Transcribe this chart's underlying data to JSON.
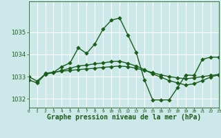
{
  "title": "Graphe pression niveau de la mer (hPa)",
  "bg_color": "#cce8e8",
  "grid_color": "#ffffff",
  "line_color": "#1a5c1a",
  "xlim": [
    0,
    23
  ],
  "ylim": [
    1031.6,
    1036.4
  ],
  "yticks": [
    1032,
    1033,
    1034,
    1035
  ],
  "xticks": [
    0,
    1,
    2,
    3,
    4,
    5,
    6,
    7,
    8,
    9,
    10,
    11,
    12,
    13,
    14,
    15,
    16,
    17,
    18,
    19,
    20,
    21,
    22,
    23
  ],
  "series1_x": [
    0,
    1,
    2,
    3,
    4,
    5,
    6,
    7,
    8,
    9,
    10,
    11,
    12,
    13,
    14,
    15,
    16,
    17,
    18,
    19,
    20,
    21,
    22,
    23
  ],
  "series1_y": [
    1032.85,
    1032.72,
    1033.1,
    1033.2,
    1033.45,
    1033.62,
    1034.3,
    1034.05,
    1034.48,
    1035.15,
    1035.55,
    1035.65,
    1034.88,
    1034.1,
    1032.85,
    1031.95,
    1031.95,
    1031.95,
    1032.5,
    1033.08,
    1033.05,
    1033.78,
    1033.88,
    1033.88
  ],
  "series2_x": [
    2,
    3,
    4,
    5,
    6,
    7,
    8,
    9,
    10,
    11,
    12,
    13,
    14,
    15,
    16,
    17,
    18,
    19,
    20,
    21,
    22,
    23
  ],
  "series2_y": [
    1033.15,
    1033.2,
    1033.25,
    1033.28,
    1033.32,
    1033.35,
    1033.38,
    1033.42,
    1033.45,
    1033.48,
    1033.45,
    1033.38,
    1033.28,
    1033.18,
    1033.08,
    1033.0,
    1032.95,
    1032.9,
    1032.95,
    1033.0,
    1033.05,
    1033.1
  ],
  "series3_x": [
    0,
    1,
    2,
    3,
    4,
    5,
    6,
    7,
    8,
    9,
    10,
    11,
    12,
    13,
    14,
    15,
    16,
    17,
    18,
    19,
    20,
    21,
    22,
    23
  ],
  "series3_y": [
    1033.0,
    1032.8,
    1033.12,
    1033.18,
    1033.28,
    1033.38,
    1033.48,
    1033.52,
    1033.58,
    1033.62,
    1033.68,
    1033.7,
    1033.6,
    1033.48,
    1033.32,
    1033.12,
    1032.98,
    1032.82,
    1032.72,
    1032.62,
    1032.68,
    1032.82,
    1032.98,
    1033.08
  ],
  "marker": "D",
  "markersize": 2.8,
  "linewidth": 1.0,
  "title_fontsize": 7.0,
  "tick_fontsize": 5.5
}
